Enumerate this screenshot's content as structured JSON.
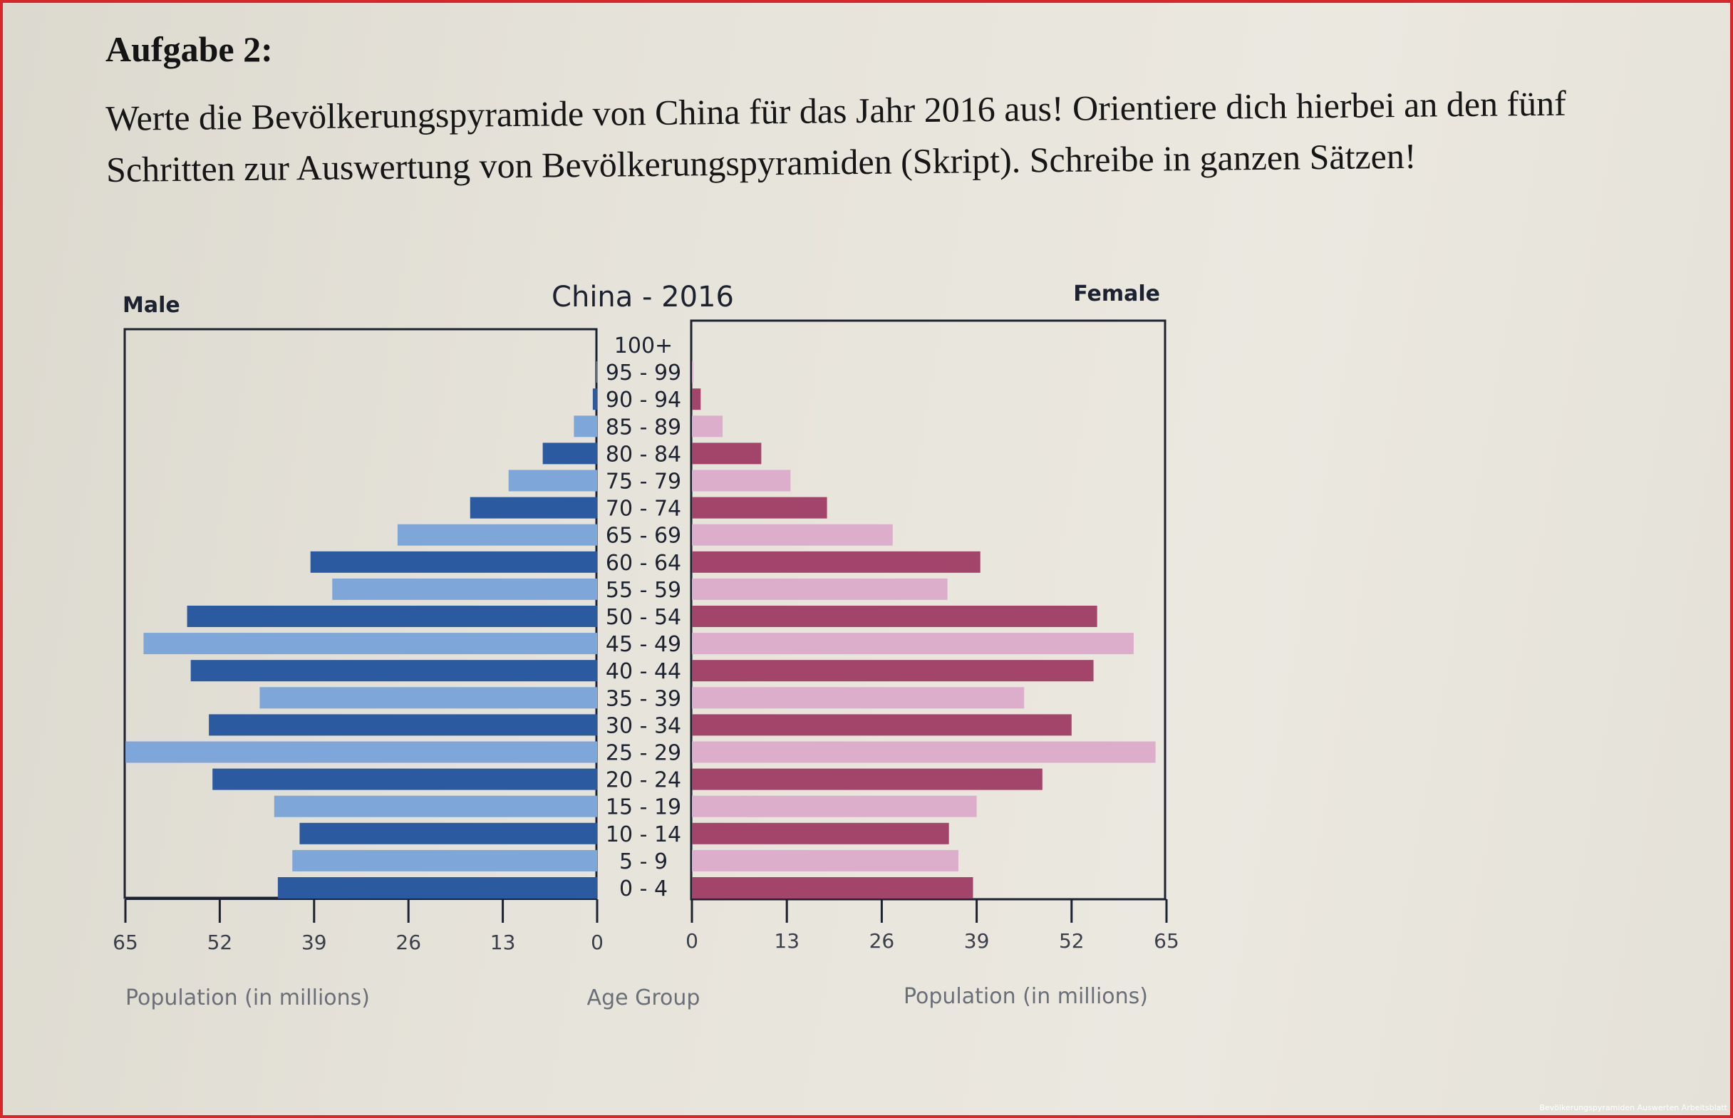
{
  "document": {
    "heading": "Aufgabe 2:",
    "task_text": "Werte die Bevölkerungspyramide von China für das Jahr 2016 aus! Orientiere dich hierbei an den fünf Schritten zur Auswertung von Bevölkerungspyramiden (Skript). Schreibe in ganzen Sätzen!",
    "footer_caption": "Bevölkerungspyramiden Auswerten Arbeitsblatt"
  },
  "colors": {
    "frame": "#d8262a",
    "male_dark": "#2c5aa0",
    "male_light": "#7fa6d8",
    "female_dark": "#a3446a",
    "female_light": "#ddaecb"
  },
  "chart_data": {
    "type": "bar",
    "subtype": "population-pyramid",
    "title": "China - 2016",
    "left_label": "Male",
    "right_label": "Female",
    "center_label": "Age Group",
    "xlabel_left": "Population (in millions)",
    "xlabel_right": "Population (in millions)",
    "xlim": [
      0,
      65
    ],
    "xticks": [
      0,
      13,
      26,
      39,
      52,
      65
    ],
    "xtick_labels_left": [
      "65",
      "52",
      "39",
      "26",
      "13",
      "0"
    ],
    "xtick_labels_right": [
      "0",
      "13",
      "26",
      "39",
      "52",
      "65"
    ],
    "categories": [
      "100+",
      "95 - 99",
      "90 - 94",
      "85 - 89",
      "80 - 84",
      "75 - 79",
      "70 - 74",
      "65 - 69",
      "60 - 64",
      "55 - 59",
      "50 - 54",
      "45 - 49",
      "40 - 44",
      "35 - 39",
      "30 - 34",
      "25 - 29",
      "20 - 24",
      "15 - 19",
      "10 - 14",
      "5 - 9",
      "0 - 4"
    ],
    "series": [
      {
        "name": "Male",
        "values": [
          0,
          0.1,
          0.6,
          3.2,
          7.5,
          12.2,
          17.5,
          27.5,
          39.5,
          36.5,
          56.5,
          62.5,
          56,
          46.5,
          53.5,
          65,
          53,
          44.5,
          41,
          42,
          44
        ]
      },
      {
        "name": "Female",
        "values": [
          0,
          0.2,
          1.2,
          4.2,
          9.5,
          13.5,
          18.5,
          27.5,
          39.5,
          35,
          55.5,
          60.5,
          55,
          45.5,
          52,
          63.5,
          48,
          39,
          35.2,
          36.5,
          38.5
        ]
      }
    ],
    "grid": false,
    "legend": "none"
  }
}
